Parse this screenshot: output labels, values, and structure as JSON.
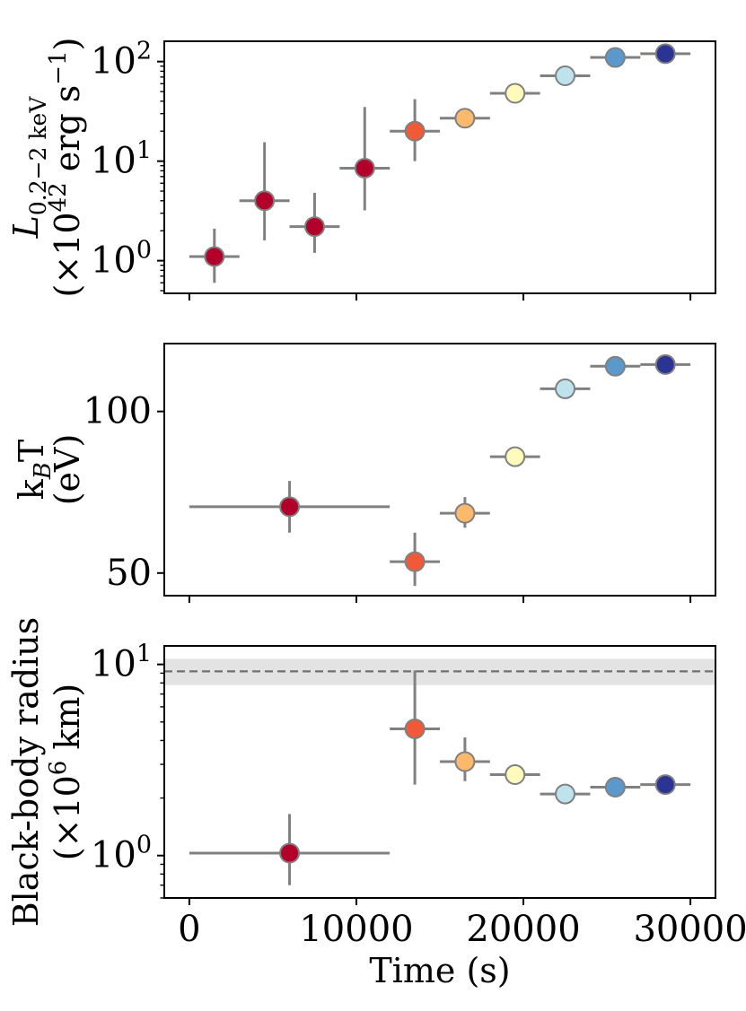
{
  "chart_data": [
    {
      "type": "scatter",
      "title": "",
      "yscale": "log",
      "ylabel": [
        "L",
        "0.2−2 keV",
        "(×10",
        "42",
        " erg s",
        "−1",
        ")"
      ],
      "xlim": [
        -1500,
        31500
      ],
      "ylim": [
        0.47,
        160
      ],
      "xticks": [
        0,
        10000,
        20000,
        30000
      ],
      "show_xtick_labels": false,
      "yticks": [
        {
          "value": 1,
          "base": "10",
          "exp": "0"
        },
        {
          "value": 10,
          "base": "10",
          "exp": "1"
        },
        {
          "value": 100,
          "base": "10",
          "exp": "2"
        }
      ],
      "points": [
        {
          "x": 1500,
          "y": 1.1,
          "xerr": 1500,
          "ylo": 0.6,
          "yhi": 2.1,
          "color": "#b2002a"
        },
        {
          "x": 4500,
          "y": 4.0,
          "xerr": 1500,
          "ylo": 1.6,
          "yhi": 15.5,
          "color": "#b2002a"
        },
        {
          "x": 7500,
          "y": 2.2,
          "xerr": 1500,
          "ylo": 1.2,
          "yhi": 4.8,
          "color": "#b2002a"
        },
        {
          "x": 10500,
          "y": 8.5,
          "xerr": 1500,
          "ylo": 3.2,
          "yhi": 35,
          "color": "#b2002a"
        },
        {
          "x": 13500,
          "y": 20,
          "xerr": 1500,
          "ylo": 10,
          "yhi": 42,
          "color": "#f05a38"
        },
        {
          "x": 16500,
          "y": 27,
          "xerr": 1500,
          "ylo": 23,
          "yhi": 31,
          "color": "#fdb96b"
        },
        {
          "x": 19500,
          "y": 48,
          "xerr": 1500,
          "ylo": 44,
          "yhi": 52,
          "color": "#fefbbd"
        },
        {
          "x": 22500,
          "y": 72,
          "xerr": 1500,
          "ylo": 67,
          "yhi": 77,
          "color": "#bfe3ed"
        },
        {
          "x": 25500,
          "y": 110,
          "xerr": 1500,
          "ylo": 102,
          "yhi": 118,
          "color": "#5b99cc"
        },
        {
          "x": 28500,
          "y": 120,
          "xerr": 1500,
          "ylo": 112,
          "yhi": 128,
          "color": "#2b3393"
        }
      ]
    },
    {
      "type": "scatter",
      "title": "",
      "yscale": "linear",
      "ylabel": [
        "k",
        "B",
        "T",
        "(eV)"
      ],
      "xlim": [
        -1500,
        31500
      ],
      "ylim": [
        43,
        121
      ],
      "xticks": [
        0,
        10000,
        20000,
        30000
      ],
      "show_xtick_labels": false,
      "yticks": [
        {
          "value": 50,
          "label": "50"
        },
        {
          "value": 100,
          "label": "100"
        }
      ],
      "points": [
        {
          "x": 6000,
          "y": 70.5,
          "xerr": 6000,
          "ylo": 62.5,
          "yhi": 78.5,
          "color": "#b2002a"
        },
        {
          "x": 13500,
          "y": 53.5,
          "xerr": 1500,
          "ylo": 46,
          "yhi": 62.5,
          "color": "#f05a38"
        },
        {
          "x": 16500,
          "y": 68.5,
          "xerr": 1500,
          "ylo": 64,
          "yhi": 73.5,
          "color": "#fdb96b"
        },
        {
          "x": 19500,
          "y": 86,
          "xerr": 1500,
          "ylo": 83,
          "yhi": 89,
          "color": "#fefbbd"
        },
        {
          "x": 22500,
          "y": 107,
          "xerr": 1500,
          "ylo": 106,
          "yhi": 108,
          "color": "#bfe3ed"
        },
        {
          "x": 25500,
          "y": 114,
          "xerr": 1500,
          "ylo": 113,
          "yhi": 115,
          "color": "#5b99cc"
        },
        {
          "x": 28500,
          "y": 114.5,
          "xerr": 1500,
          "ylo": 113.5,
          "yhi": 115.5,
          "color": "#2b3393"
        }
      ]
    },
    {
      "type": "scatter",
      "title": "",
      "yscale": "log",
      "ylabel": [
        "Black-body radius",
        "(×10",
        "6",
        " km)"
      ],
      "xlabel": "Time (s)",
      "xlim": [
        -1500,
        31500
      ],
      "ylim": [
        0.6,
        12.5
      ],
      "xticks": [
        0,
        10000,
        20000,
        30000
      ],
      "show_xtick_labels": true,
      "xtick_labels": [
        "0",
        "10000",
        "20000",
        "30000"
      ],
      "yticks": [
        {
          "value": 1,
          "base": "10",
          "exp": "0"
        },
        {
          "value": 10,
          "base": "10",
          "exp": "1"
        }
      ],
      "reference": {
        "value": 9.2,
        "band_lo": 7.8,
        "band_hi": 10.7,
        "style": "dashed"
      },
      "points": [
        {
          "x": 6000,
          "y": 1.03,
          "xerr": 6000,
          "ylo": 0.7,
          "yhi": 1.65,
          "color": "#b2002a"
        },
        {
          "x": 13500,
          "y": 4.6,
          "xerr": 1500,
          "ylo": 2.35,
          "yhi": 9.3,
          "color": "#f05a38"
        },
        {
          "x": 16500,
          "y": 3.1,
          "xerr": 1500,
          "ylo": 2.45,
          "yhi": 4.15,
          "color": "#fdb96b"
        },
        {
          "x": 19500,
          "y": 2.65,
          "xerr": 1500,
          "ylo": 2.35,
          "yhi": 3.0,
          "color": "#fefbbd"
        },
        {
          "x": 22500,
          "y": 2.1,
          "xerr": 1500,
          "ylo": 2.05,
          "yhi": 2.15,
          "color": "#bfe3ed"
        },
        {
          "x": 25500,
          "y": 2.28,
          "xerr": 1500,
          "ylo": 2.2,
          "yhi": 2.36,
          "color": "#5b99cc"
        },
        {
          "x": 28500,
          "y": 2.35,
          "xerr": 1500,
          "ylo": 2.27,
          "yhi": 2.43,
          "color": "#2b3393"
        }
      ]
    }
  ],
  "style": {
    "errorbar_color": "#808080",
    "marker_edge_color": "#808080",
    "band_color": "#e0e0e0",
    "reference_line_color": "#707070",
    "axis_color": "#000000"
  }
}
